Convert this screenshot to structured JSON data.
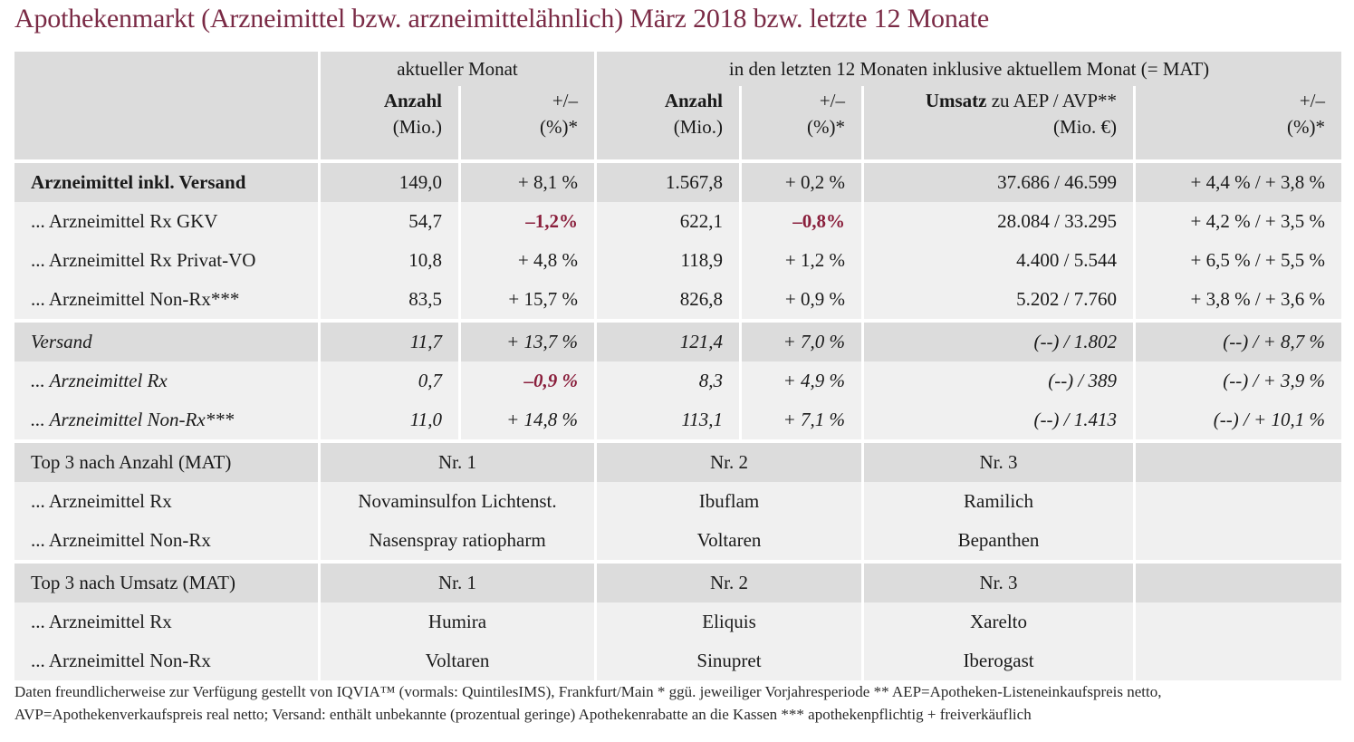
{
  "title": "Apothekenmarkt (Arzneimittel bzw. arzneimittelähnlich) März 2018 bzw. letzte 12 Monate",
  "header": {
    "group_current": "aktueller Monat",
    "group_mat": "in den letzten 12 Monaten inklusive aktuellem Monat (= MAT)",
    "anzahl": "Anzahl",
    "mio": "(Mio.)",
    "plusminus": "+/–",
    "pct": "(%)*",
    "umsatz_bold": "Umsatz",
    "umsatz_rest": " zu AEP / AVP**",
    "mio_eur": "(Mio. €)"
  },
  "rows": [
    {
      "label": "Arzneimittel inkl. Versand",
      "a1": "149,0",
      "p1": "+ 8,1 %",
      "a2": "1.567,8",
      "p2": "+ 0,2 %",
      "u": "37.686 / 46.599",
      "pu": "+ 4,4 % / + 3,8 %"
    },
    {
      "label": "... Arzneimittel Rx GKV",
      "a1": "54,7",
      "p1": "–1,2%",
      "a2": "622,1",
      "p2": "–0,8%",
      "u": "28.084 / 33.295",
      "pu": "+ 4,2 % / + 3,5 %"
    },
    {
      "label": "... Arzneimittel Rx Privat-VO",
      "a1": "10,8",
      "p1": "+ 4,8 %",
      "a2": "118,9",
      "p2": "+ 1,2 %",
      "u": "4.400 / 5.544",
      "pu": "+ 6,5 % / + 5,5 %"
    },
    {
      "label": "... Arzneimittel Non-Rx***",
      "a1": "83,5",
      "p1": "+ 15,7 %",
      "a2": "826,8",
      "p2": "+ 0,9 %",
      "u": "5.202 / 7.760",
      "pu": "+ 3,8 % / + 3,6 %"
    },
    {
      "label": "Versand",
      "a1": "11,7",
      "p1": "+ 13,7 %",
      "a2": "121,4",
      "p2": "+ 7,0 %",
      "u": "(--) / 1.802",
      "pu": "(--) / + 8,7 %"
    },
    {
      "label": "... Arzneimittel Rx",
      "a1": "0,7",
      "p1": "–0,9 %",
      "a2": "8,3",
      "p2": "+ 4,9 %",
      "u": "(--) / 389",
      "pu": "(--) / + 3,9 %"
    },
    {
      "label": "... Arzneimittel Non-Rx***",
      "a1": "11,0",
      "p1": "+ 14,8 %",
      "a2": "113,1",
      "p2": "+ 7,1 %",
      "u": "(--) / 1.413",
      "pu": "(--) / + 10,1 %"
    }
  ],
  "top_anzahl": {
    "label": "Top 3 nach Anzahl (MAT)",
    "nr1": "Nr. 1",
    "nr2": "Nr. 2",
    "nr3": "Nr. 3",
    "rows": [
      {
        "label": "... Arzneimittel Rx",
        "n1": "Novaminsulfon Lichtenst.",
        "n2": "Ibuflam",
        "n3": "Ramilich"
      },
      {
        "label": "... Arzneimittel Non-Rx",
        "n1": "Nasenspray ratiopharm",
        "n2": "Voltaren",
        "n3": "Bepanthen"
      }
    ]
  },
  "top_umsatz": {
    "label": "Top 3 nach Umsatz (MAT)",
    "nr1": "Nr. 1",
    "nr2": "Nr. 2",
    "nr3": "Nr. 3",
    "rows": [
      {
        "label": "... Arzneimittel Rx",
        "n1": "Humira",
        "n2": "Eliquis",
        "n3": "Xarelto"
      },
      {
        "label": "... Arzneimittel Non-Rx",
        "n1": "Voltaren",
        "n2": "Sinupret",
        "n3": "Iberogast"
      }
    ]
  },
  "footer": {
    "line1": "Daten freundlicherweise zur Verfügung gestellt von IQVIA™ (vormals: QuintilesIMS), Frankfurt/Main  * ggü. jeweiliger Vorjahresperiode  ** AEP=Apotheken-Listeneinkaufspreis netto,",
    "line2": "AVP=Apothekenverkaufspreis real netto; Versand: enthält unbekannte (prozentual geringe) Apothekenrabatte an die Kassen   *** apothekenpflichtig + freiverkäuflich"
  },
  "colors": {
    "accent": "#7a2a45",
    "negative": "#8a1f3c",
    "header_bg": "#dcdcdc",
    "row_light": "#f0f0f0"
  }
}
